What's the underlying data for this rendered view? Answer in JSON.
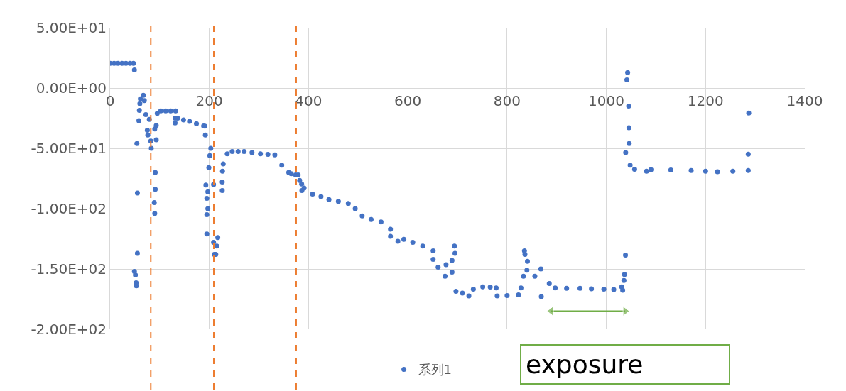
{
  "chart_data": {
    "type": "scatter",
    "marker": "circle",
    "legend": "bottom",
    "grid": true,
    "xlim": [
      0,
      1400
    ],
    "xticks": [
      0,
      200,
      400,
      600,
      800,
      1000,
      1200,
      1400
    ],
    "ylim": [
      -200,
      50
    ],
    "yticks": [
      {
        "value": 50,
        "label": "5.00E+01"
      },
      {
        "value": 0,
        "label": "0.00E+00"
      },
      {
        "value": -50,
        "label": "-5.00E+01"
      },
      {
        "value": -100,
        "label": "-1.00E+02"
      },
      {
        "value": -150,
        "label": "-1.50E+02"
      },
      {
        "value": -200,
        "label": "-2.00E+02"
      }
    ],
    "ref_lines": [
      {
        "axis": "x",
        "value": 82,
        "color": "#ed7d31",
        "line_style": "dashed"
      },
      {
        "axis": "x",
        "value": 209,
        "color": "#ed7d31",
        "line_style": "dashed"
      },
      {
        "axis": "x",
        "value": 375,
        "color": "#ed7d31",
        "line_style": "dashed"
      }
    ],
    "annotations": [
      "exposure"
    ],
    "series": [
      {
        "name": "系列1",
        "color": "#4472c4",
        "x": [
          0,
          8,
          16,
          24,
          32,
          40,
          47,
          49,
          53,
          52.5,
          51,
          49,
          55,
          55,
          54,
          58,
          59,
          60,
          61,
          67,
          69,
          72,
          75,
          76,
          79,
          82,
          83,
          90,
          93,
          93,
          91,
          91,
          89,
          90,
          95,
          102,
          112,
          122,
          132,
          131,
          131,
          136,
          148,
          160,
          174,
          188.5,
          191,
          192,
          203,
          201,
          199,
          193,
          197,
          195,
          197,
          195,
          195,
          208.5,
          208.5,
          210,
          213,
          215,
          217,
          226,
          226,
          226.5,
          228,
          236,
          246,
          258,
          270,
          286,
          303,
          318,
          332,
          346,
          360,
          365,
          374,
          379,
          382,
          386,
          386.5,
          391,
          408,
          425,
          441,
          460,
          480,
          494,
          508,
          526,
          546,
          565,
          565,
          580,
          592,
          610,
          630,
          651,
          651,
          661,
          675,
          677,
          689,
          694,
          695,
          689,
          697,
          710,
          723,
          732,
          751,
          766,
          778,
          780,
          800,
          823,
          828,
          833,
          835,
          836,
          841,
          840,
          856,
          868,
          869,
          885,
          897,
          920,
          947,
          970,
          995,
          1015,
          1031,
          1033,
          1035.5,
          1036.6,
          1038.6,
          1043,
          1041.5,
          1045,
          1045.5,
          1046,
          1039,
          1048,
          1057,
          1081,
          1090,
          1130,
          1171,
          1200,
          1224,
          1255,
          1286,
          1287,
          1286
        ],
        "values": [
          20.5,
          20.5,
          20.5,
          20.5,
          20.5,
          20.5,
          20.5,
          15,
          -164,
          -161.5,
          -155,
          -152,
          -137,
          -87,
          -46,
          -27,
          -18.6,
          -13,
          -9,
          -6,
          -10.5,
          -22,
          -35,
          -39,
          -26,
          -44,
          -50,
          -34,
          -31,
          -43,
          -70,
          -84,
          -95,
          -104,
          -21,
          -19,
          -19,
          -19,
          -19,
          -25,
          -29,
          -25,
          -26.5,
          -27.7,
          -29.5,
          -31.5,
          -31.6,
          -39,
          -50,
          -56,
          -66,
          -80.5,
          -86,
          -91.5,
          -100,
          -105,
          -121,
          -80,
          -128,
          -138,
          -138,
          -131,
          -124,
          -85,
          -78,
          -69,
          -63,
          -54.6,
          -52.7,
          -52.7,
          -52.7,
          -53.5,
          -54.6,
          -55,
          -55.5,
          -64,
          -70,
          -71,
          -72,
          -72,
          -76.6,
          -79.5,
          -85,
          -83,
          -88,
          -90,
          -92.5,
          -94,
          -95.8,
          -100,
          -106,
          -109,
          -111,
          -117,
          -123,
          -127,
          -125.5,
          -128,
          -131,
          -135,
          -142,
          -148.5,
          -156,
          -146.5,
          -143,
          -131,
          -137,
          -152.7,
          -168.6,
          -170,
          -172.4,
          -166.7,
          -164.8,
          -165,
          -165.7,
          -172.4,
          -172,
          -171.4,
          -165.7,
          -156,
          -135,
          -138,
          -143.7,
          -151,
          -156,
          -150,
          -173,
          -162,
          -165.7,
          -166,
          -166,
          -166.5,
          -166.7,
          -167,
          -164.8,
          -167.6,
          -159.6,
          -154.6,
          -138.5,
          12.8,
          6.7,
          -15,
          -33,
          -46,
          -53.6,
          -64,
          -67.4,
          -69,
          -67.6,
          -68,
          -68.4,
          -69,
          -69.4,
          -69,
          -68.4,
          -20.7,
          -54.8
        ]
      },
      {
        "type": "line",
        "marker": "triangle",
        "color": "#70ad47",
        "x": [
          889,
          1038
        ],
        "values": [
          -185,
          -185
        ]
      }
    ]
  }
}
